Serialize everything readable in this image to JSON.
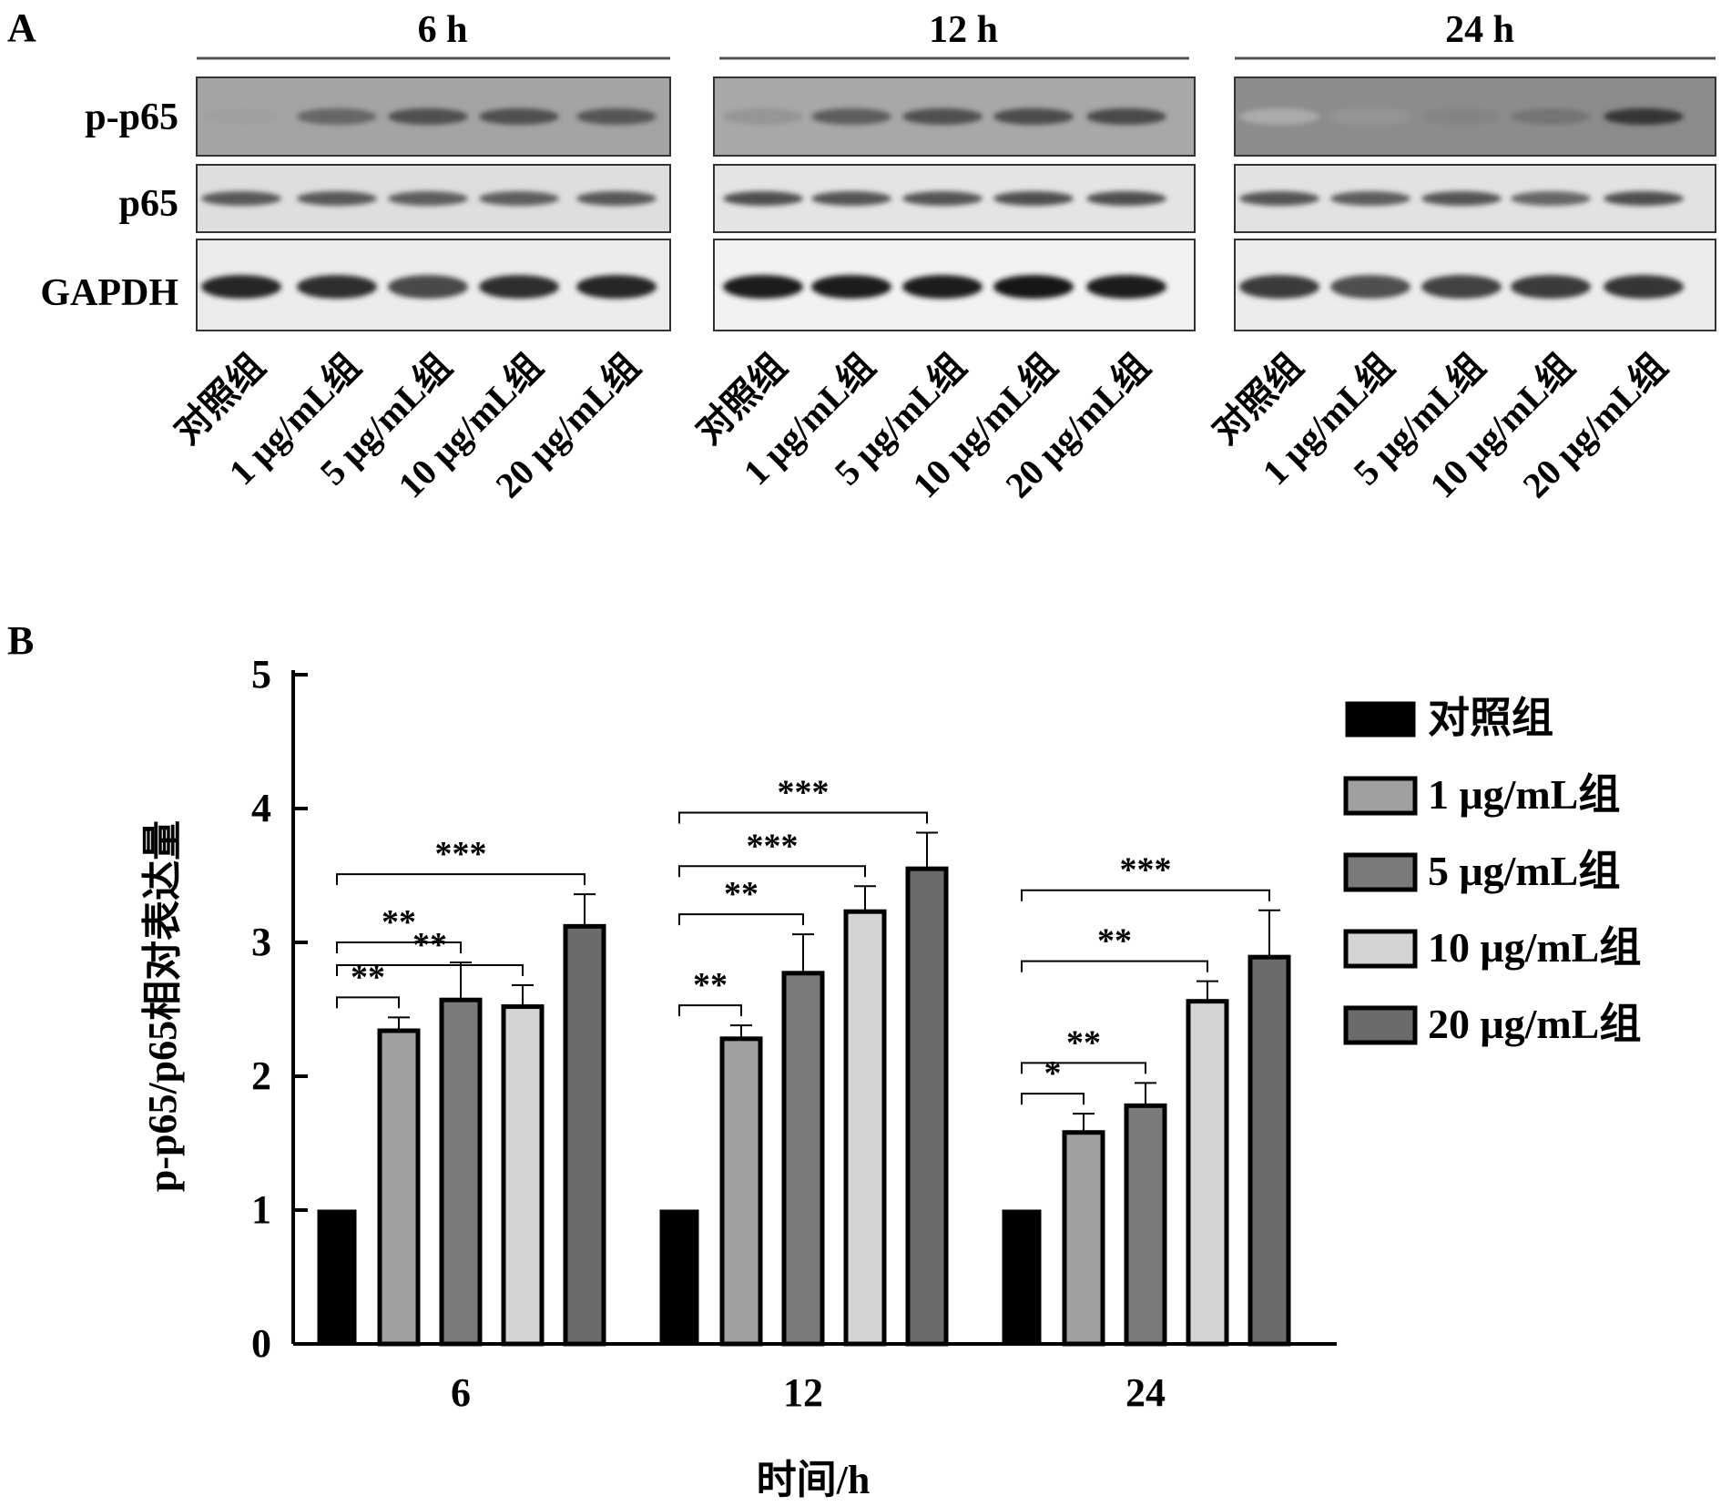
{
  "panel_a": {
    "label": "A",
    "times": [
      "6 h",
      "12 h",
      "24 h"
    ],
    "rows": [
      "p-p65",
      "p65",
      "GAPDH"
    ],
    "lane_labels": [
      "对照组",
      "1 μg/mL组",
      "5 μg/mL组",
      "10 μg/mL组",
      "20 μg/mL组"
    ],
    "band_intensity": [
      [
        [
          0.35,
          0.62,
          0.72,
          0.72,
          0.7
        ],
        [
          0.4,
          0.66,
          0.72,
          0.74,
          0.76
        ],
        [
          0.3,
          0.4,
          0.48,
          0.55,
          0.85
        ]
      ],
      [
        [
          0.68,
          0.68,
          0.66,
          0.66,
          0.68
        ],
        [
          0.72,
          0.7,
          0.7,
          0.72,
          0.72
        ],
        [
          0.7,
          0.66,
          0.7,
          0.62,
          0.72
        ]
      ],
      [
        [
          0.92,
          0.88,
          0.75,
          0.88,
          0.92
        ],
        [
          0.95,
          0.95,
          0.95,
          0.98,
          0.95
        ],
        [
          0.82,
          0.72,
          0.78,
          0.82,
          0.85
        ]
      ]
    ]
  },
  "chart_data": {
    "type": "bar",
    "panel_label": "B",
    "categories": [
      "6",
      "12",
      "24"
    ],
    "xlabel": "时间/h",
    "ylabel": "p-p65/p65相对表达量",
    "ylim": [
      0,
      5
    ],
    "yticks": [
      "0",
      "1",
      "2",
      "3",
      "4",
      "5"
    ],
    "legend_position": "right",
    "series": [
      {
        "name": "对照组",
        "color": "#000000",
        "values": [
          1.0,
          1.0,
          1.0
        ],
        "errors": [
          0,
          0,
          0
        ]
      },
      {
        "name": "1 μg/mL组",
        "color": "#a0a0a0",
        "values": [
          2.34,
          2.28,
          1.58
        ],
        "errors": [
          0.1,
          0.1,
          0.14
        ]
      },
      {
        "name": "5 μg/mL组",
        "color": "#7a7a7a",
        "values": [
          2.57,
          2.77,
          1.78
        ],
        "errors": [
          0.28,
          0.29,
          0.17
        ]
      },
      {
        "name": "10 μg/mL组",
        "color": "#d4d4d4",
        "values": [
          2.52,
          3.23,
          2.56
        ],
        "errors": [
          0.16,
          0.19,
          0.15
        ]
      },
      {
        "name": "20 μg/mL组",
        "color": "#6b6b6b",
        "values": [
          3.12,
          3.55,
          2.89
        ],
        "errors": [
          0.24,
          0.27,
          0.35
        ]
      }
    ],
    "significance": [
      {
        "group": 0,
        "compare": 1,
        "label": "**"
      },
      {
        "group": 0,
        "compare": 2,
        "label": "**"
      },
      {
        "group": 0,
        "compare": 3,
        "label": "**"
      },
      {
        "group": 0,
        "compare": 4,
        "label": "***"
      },
      {
        "group": 1,
        "compare": 1,
        "label": "**"
      },
      {
        "group": 1,
        "compare": 2,
        "label": "**"
      },
      {
        "group": 1,
        "compare": 3,
        "label": "***"
      },
      {
        "group": 1,
        "compare": 4,
        "label": "***"
      },
      {
        "group": 2,
        "compare": 1,
        "label": "*"
      },
      {
        "group": 2,
        "compare": 2,
        "label": "**"
      },
      {
        "group": 2,
        "compare": 3,
        "label": "**"
      },
      {
        "group": 2,
        "compare": 4,
        "label": "***"
      }
    ]
  }
}
